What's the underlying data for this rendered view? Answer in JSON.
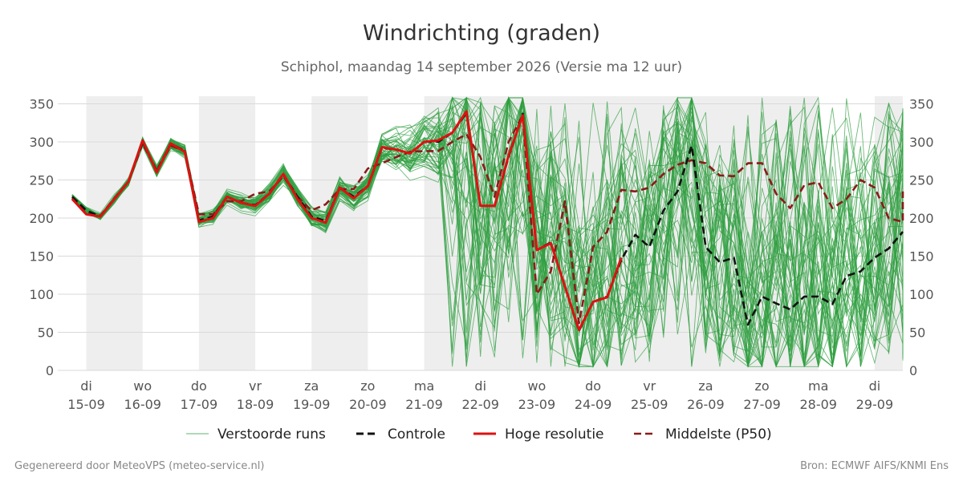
{
  "chart_data": {
    "type": "line",
    "title": "Windrichting (graden)",
    "subtitle": "Schiphol, maandag 14 september 2026 (Versie ma 12 uur)",
    "ylim": [
      0,
      360
    ],
    "yticks": [
      0,
      50,
      100,
      150,
      200,
      250,
      300,
      350
    ],
    "grid": true,
    "xlim": [
      -0.25,
      14.5
    ],
    "x_ticks": [
      {
        "x": 0,
        "day": "di",
        "date": "15-09"
      },
      {
        "x": 1,
        "day": "wo",
        "date": "16-09"
      },
      {
        "x": 2,
        "day": "do",
        "date": "17-09"
      },
      {
        "x": 3,
        "day": "vr",
        "date": "18-09"
      },
      {
        "x": 4,
        "day": "za",
        "date": "19-09"
      },
      {
        "x": 5,
        "day": "zo",
        "date": "20-09"
      },
      {
        "x": 6,
        "day": "ma",
        "date": "21-09"
      },
      {
        "x": 7,
        "day": "di",
        "date": "22-09"
      },
      {
        "x": 8,
        "day": "wo",
        "date": "23-09"
      },
      {
        "x": 9,
        "day": "do",
        "date": "24-09"
      },
      {
        "x": 10,
        "day": "vr",
        "date": "25-09"
      },
      {
        "x": 11,
        "day": "za",
        "date": "26-09"
      },
      {
        "x": 12,
        "day": "zo",
        "date": "27-09"
      },
      {
        "x": 13,
        "day": "ma",
        "date": "28-09"
      },
      {
        "x": 14,
        "day": "di",
        "date": "29-09"
      }
    ],
    "shaded_bands": [
      [
        0,
        1
      ],
      [
        2,
        3
      ],
      [
        4,
        5
      ],
      [
        6,
        13
      ],
      [
        14,
        14.5
      ]
    ],
    "legend_placement": "bottom-center",
    "series": [
      {
        "name": "Controle",
        "color": "#111111",
        "style": "dashed",
        "points": [
          [
            -0.25,
            228
          ],
          [
            0,
            210
          ],
          [
            0.25,
            202
          ],
          [
            0.5,
            225
          ],
          [
            0.75,
            248
          ],
          [
            1,
            300
          ],
          [
            1.25,
            262
          ],
          [
            1.5,
            298
          ],
          [
            1.75,
            288
          ],
          [
            2,
            197
          ],
          [
            2.25,
            202
          ],
          [
            2.5,
            228
          ],
          [
            2.75,
            220
          ],
          [
            3,
            217
          ],
          [
            3.25,
            232
          ],
          [
            3.5,
            257
          ],
          [
            3.75,
            228
          ],
          [
            4,
            202
          ],
          [
            4.25,
            196
          ],
          [
            4.5,
            240
          ],
          [
            4.75,
            228
          ],
          [
            5,
            242
          ],
          [
            5.25,
            292
          ],
          [
            5.5,
            290
          ],
          [
            5.75,
            285
          ],
          [
            6,
            300
          ],
          [
            6.25,
            300
          ],
          [
            6.5,
            312
          ],
          [
            6.75,
            338
          ],
          [
            7,
            216
          ],
          [
            7.25,
            216
          ],
          [
            7.5,
            280
          ],
          [
            7.75,
            337
          ],
          [
            8,
            158
          ],
          [
            8.25,
            168
          ],
          [
            8.5,
            110
          ],
          [
            8.75,
            52
          ],
          [
            9,
            90
          ],
          [
            9.25,
            97
          ],
          [
            9.5,
            145
          ],
          [
            9.75,
            178
          ],
          [
            10,
            162
          ],
          [
            10.25,
            210
          ],
          [
            10.5,
            235
          ],
          [
            10.75,
            295
          ],
          [
            11,
            162
          ],
          [
            11.25,
            142
          ],
          [
            11.5,
            148
          ],
          [
            11.75,
            60
          ],
          [
            12,
            97
          ],
          [
            12.25,
            88
          ],
          [
            12.5,
            80
          ],
          [
            12.75,
            97
          ],
          [
            13,
            97
          ],
          [
            13.25,
            87
          ],
          [
            13.5,
            124
          ],
          [
            13.75,
            130
          ],
          [
            14,
            148
          ],
          [
            14.25,
            160
          ],
          [
            14.5,
            182
          ]
        ]
      },
      {
        "name": "Hoge resolutie",
        "color": "#dd1111",
        "style": "solid",
        "points": [
          [
            -0.25,
            225
          ],
          [
            0,
            205
          ],
          [
            0.25,
            202
          ],
          [
            0.5,
            225
          ],
          [
            0.75,
            248
          ],
          [
            1,
            302
          ],
          [
            1.25,
            260
          ],
          [
            1.5,
            298
          ],
          [
            1.75,
            287
          ],
          [
            2,
            195
          ],
          [
            2.25,
            200
          ],
          [
            2.5,
            228
          ],
          [
            2.75,
            220
          ],
          [
            3,
            216
          ],
          [
            3.25,
            232
          ],
          [
            3.5,
            258
          ],
          [
            3.75,
            225
          ],
          [
            4,
            200
          ],
          [
            4.25,
            194
          ],
          [
            4.5,
            240
          ],
          [
            4.75,
            226
          ],
          [
            5,
            242
          ],
          [
            5.25,
            293
          ],
          [
            5.5,
            290
          ],
          [
            5.75,
            285
          ],
          [
            6,
            300
          ],
          [
            6.25,
            302
          ],
          [
            6.5,
            312
          ],
          [
            6.75,
            340
          ],
          [
            7,
            216
          ],
          [
            7.25,
            216
          ],
          [
            7.5,
            282
          ],
          [
            7.75,
            335
          ],
          [
            8,
            158
          ],
          [
            8.25,
            167
          ],
          [
            8.5,
            110
          ],
          [
            8.75,
            53
          ],
          [
            9,
            90
          ],
          [
            9.25,
            96
          ],
          [
            9.5,
            148
          ]
        ]
      },
      {
        "name": "Middelste (P50)",
        "color": "#8b1a1a",
        "style": "dashed",
        "points": [
          [
            -0.25,
            226
          ],
          [
            0,
            206
          ],
          [
            0.25,
            203
          ],
          [
            0.5,
            226
          ],
          [
            0.75,
            248
          ],
          [
            1,
            298
          ],
          [
            1.25,
            262
          ],
          [
            1.5,
            295
          ],
          [
            1.75,
            288
          ],
          [
            2,
            205
          ],
          [
            2.25,
            205
          ],
          [
            2.5,
            222
          ],
          [
            2.75,
            222
          ],
          [
            3,
            232
          ],
          [
            3.25,
            235
          ],
          [
            3.5,
            255
          ],
          [
            3.75,
            228
          ],
          [
            4,
            210
          ],
          [
            4.25,
            218
          ],
          [
            4.5,
            238
          ],
          [
            4.75,
            238
          ],
          [
            5,
            265
          ],
          [
            5.25,
            272
          ],
          [
            5.5,
            280
          ],
          [
            5.75,
            287
          ],
          [
            6,
            288
          ],
          [
            6.25,
            288
          ],
          [
            6.5,
            300
          ],
          [
            6.75,
            310
          ],
          [
            7,
            280
          ],
          [
            7.25,
            228
          ],
          [
            7.5,
            300
          ],
          [
            7.75,
            335
          ],
          [
            8,
            100
          ],
          [
            8.25,
            130
          ],
          [
            8.5,
            222
          ],
          [
            8.75,
            62
          ],
          [
            9,
            162
          ],
          [
            9.25,
            182
          ],
          [
            9.5,
            237
          ],
          [
            9.75,
            235
          ],
          [
            10,
            240
          ],
          [
            10.25,
            258
          ],
          [
            10.5,
            270
          ],
          [
            10.75,
            276
          ],
          [
            11,
            272
          ],
          [
            11.25,
            256
          ],
          [
            11.5,
            255
          ],
          [
            11.75,
            272
          ],
          [
            12,
            272
          ],
          [
            12.25,
            232
          ],
          [
            12.5,
            213
          ],
          [
            12.75,
            243
          ],
          [
            13,
            247
          ],
          [
            13.25,
            213
          ],
          [
            13.5,
            225
          ],
          [
            13.75,
            250
          ],
          [
            14,
            240
          ],
          [
            14.25,
            200
          ],
          [
            14.5,
            195
          ],
          [
            14.75,
            235
          ]
        ]
      }
    ],
    "ensemble": {
      "name": "Verstoorde runs",
      "color": "#2e9e3e",
      "count": 50
    }
  },
  "legend": {
    "items": [
      {
        "key": "ensemble",
        "label": "Verstoorde runs"
      },
      {
        "key": "controle",
        "label": "Controle"
      },
      {
        "key": "hires",
        "label": "Hoge resolutie"
      },
      {
        "key": "p50",
        "label": "Middelste (P50)"
      }
    ]
  },
  "footer": {
    "left": "Gegenereerd door MeteoVPS (meteo-service.nl)",
    "right": "Bron: ECMWF AIFS/KNMI Ens"
  }
}
